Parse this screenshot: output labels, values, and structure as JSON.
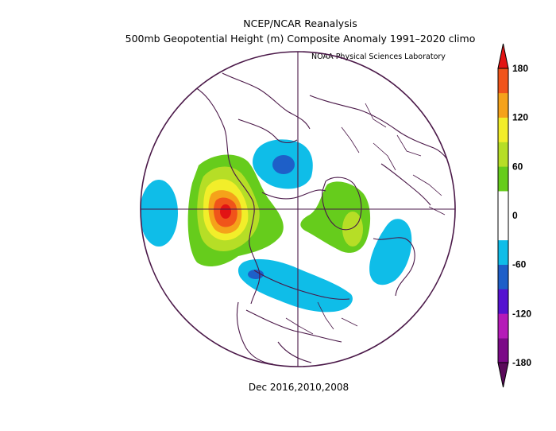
{
  "map": {
    "title_line1": "NCEP/NCAR Reanalysis",
    "title_line2": "500mb Geopotential Height (m) Composite Anomaly 1991–2020 climo",
    "lab_credit": "NOAA Physical Sciences Laboratory",
    "subtitle": "Dec 2016,2010,2008",
    "projection": "north polar stereographic",
    "variable": "500mb geopotential height anomaly (m)"
  },
  "colorbar": {
    "ticks": [
      "180",
      "120",
      "60",
      "0",
      "-60",
      "-120",
      "-180"
    ],
    "bins": [
      {
        "range": "-180 to -150",
        "color": "#7b0a87"
      },
      {
        "range": "-150 to -120",
        "color": "#b51ab8"
      },
      {
        "range": "-120 to -90",
        "color": "#5512d0"
      },
      {
        "range": "-90 to -60",
        "color": "#1e5fc8"
      },
      {
        "range": "-60 to -30",
        "color": "#0fbde8"
      },
      {
        "range": "-30 to 0",
        "color": "#ffffff"
      },
      {
        "range": "0 to 30",
        "color": "#ffffff"
      },
      {
        "range": "30 to 60",
        "color": "#66cc1c"
      },
      {
        "range": "60 to 90",
        "color": "#b6de26"
      },
      {
        "range": "90 to 120",
        "color": "#f2ee2a"
      },
      {
        "range": "120 to 150",
        "color": "#f5a21a"
      },
      {
        "range": "150 to 180",
        "color": "#f0541a"
      }
    ],
    "top_triangle_color": "#e21414",
    "bottom_triangle_color": "#5a0a5a"
  },
  "colors": {
    "outline": "#4a1848",
    "grid": "#4a1848"
  }
}
